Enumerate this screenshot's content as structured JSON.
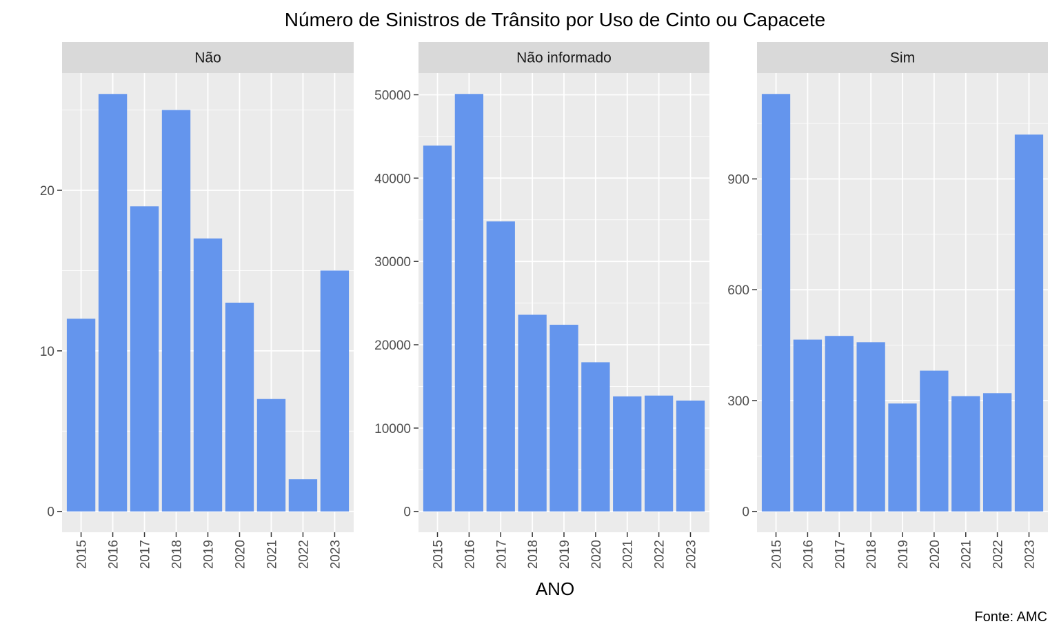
{
  "chart_data": {
    "type": "bar",
    "title": "Número de Sinistros de Trânsito por Uso de Cinto ou Capacete",
    "xlabel": "ANO",
    "ylabel": "",
    "caption": "Fonte: AMC",
    "categories": [
      "2015",
      "2016",
      "2017",
      "2018",
      "2019",
      "2020",
      "2021",
      "2022",
      "2023"
    ],
    "grid": true,
    "bar_color": "#6495ED",
    "panel_background": "#EBEBEB",
    "strip_background": "#D9D9D9",
    "facets": [
      {
        "label": "Não",
        "values": [
          12,
          26,
          19,
          25,
          17,
          13,
          7,
          2,
          15
        ],
        "ylim": [
          -1.3,
          27.3
        ],
        "yticks": [
          0,
          10,
          20
        ],
        "ytick_labels": [
          "0",
          "10",
          "20"
        ]
      },
      {
        "label": "Não informado",
        "values": [
          43900,
          50100,
          34800,
          23600,
          22400,
          17900,
          13800,
          13900,
          13300
        ],
        "ylim": [
          -2505,
          52605
        ],
        "yticks": [
          0,
          10000,
          20000,
          30000,
          40000,
          50000
        ],
        "ytick_labels": [
          "0",
          "10000",
          "20000",
          "30000",
          "40000",
          "50000"
        ]
      },
      {
        "label": "Sim",
        "values": [
          1130,
          465,
          475,
          458,
          292,
          381,
          312,
          320,
          1020
        ],
        "ylim": [
          -56.5,
          1186.5
        ],
        "yticks": [
          0,
          300,
          600,
          900
        ],
        "ytick_labels": [
          "0",
          "300",
          "600",
          "900"
        ]
      }
    ]
  }
}
